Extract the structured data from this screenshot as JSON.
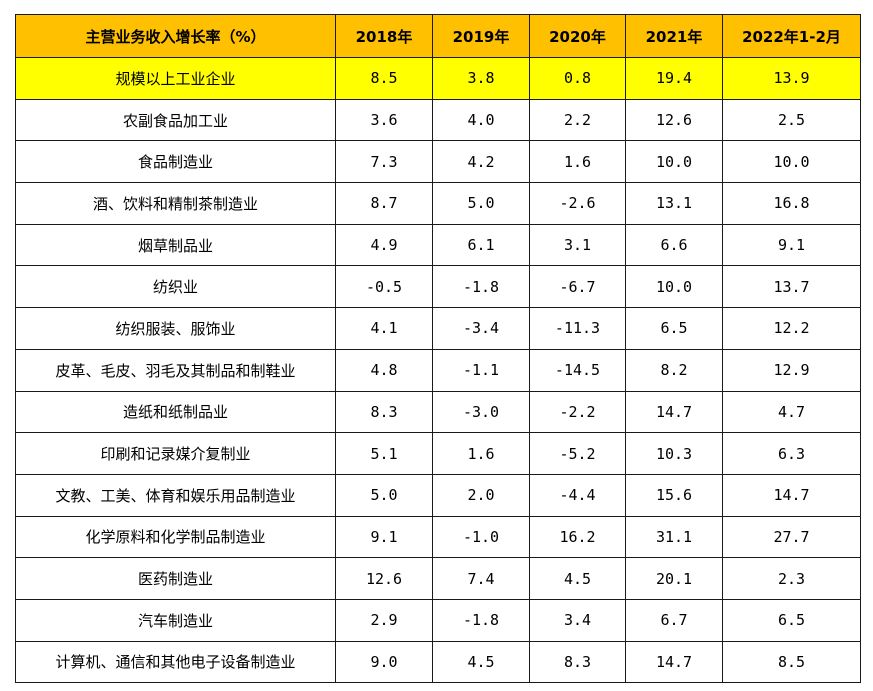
{
  "chart_data": {
    "type": "table",
    "columns": [
      "主营业务收入增长率（%）",
      "2018年",
      "2019年",
      "2020年",
      "2021年",
      "2022年1-2月"
    ],
    "highlight_color": "#ffff00",
    "header_color": "#ffc000",
    "rows": [
      [
        "规模以上工业企业",
        "8.5",
        "3.8",
        "0.8",
        "19.4",
        "13.9"
      ],
      [
        "农副食品加工业",
        "3.6",
        "4.0",
        "2.2",
        "12.6",
        "2.5"
      ],
      [
        "食品制造业",
        "7.3",
        "4.2",
        "1.6",
        "10.0",
        "10.0"
      ],
      [
        "酒、饮料和精制茶制造业",
        "8.7",
        "5.0",
        "-2.6",
        "13.1",
        "16.8"
      ],
      [
        "烟草制品业",
        "4.9",
        "6.1",
        "3.1",
        "6.6",
        "9.1"
      ],
      [
        "纺织业",
        "-0.5",
        "-1.8",
        "-6.7",
        "10.0",
        "13.7"
      ],
      [
        "纺织服装、服饰业",
        "4.1",
        "-3.4",
        "-11.3",
        "6.5",
        "12.2"
      ],
      [
        "皮革、毛皮、羽毛及其制品和制鞋业",
        "4.8",
        "-1.1",
        "-14.5",
        "8.2",
        "12.9"
      ],
      [
        "造纸和纸制品业",
        "8.3",
        "-3.0",
        "-2.2",
        "14.7",
        "4.7"
      ],
      [
        "印刷和记录媒介复制业",
        "5.1",
        "1.6",
        "-5.2",
        "10.3",
        "6.3"
      ],
      [
        "文教、工美、体育和娱乐用品制造业",
        "5.0",
        "2.0",
        "-4.4",
        "15.6",
        "14.7"
      ],
      [
        "化学原料和化学制品制造业",
        "9.1",
        "-1.0",
        "16.2",
        "31.1",
        "27.7"
      ],
      [
        "医药制造业",
        "12.6",
        "7.4",
        "4.5",
        "20.1",
        "2.3"
      ],
      [
        "汽车制造业",
        "2.9",
        "-1.8",
        "3.4",
        "6.7",
        "6.5"
      ],
      [
        "计算机、通信和其他电子设备制造业",
        "9.0",
        "4.5",
        "8.3",
        "14.7",
        "8.5"
      ]
    ]
  }
}
